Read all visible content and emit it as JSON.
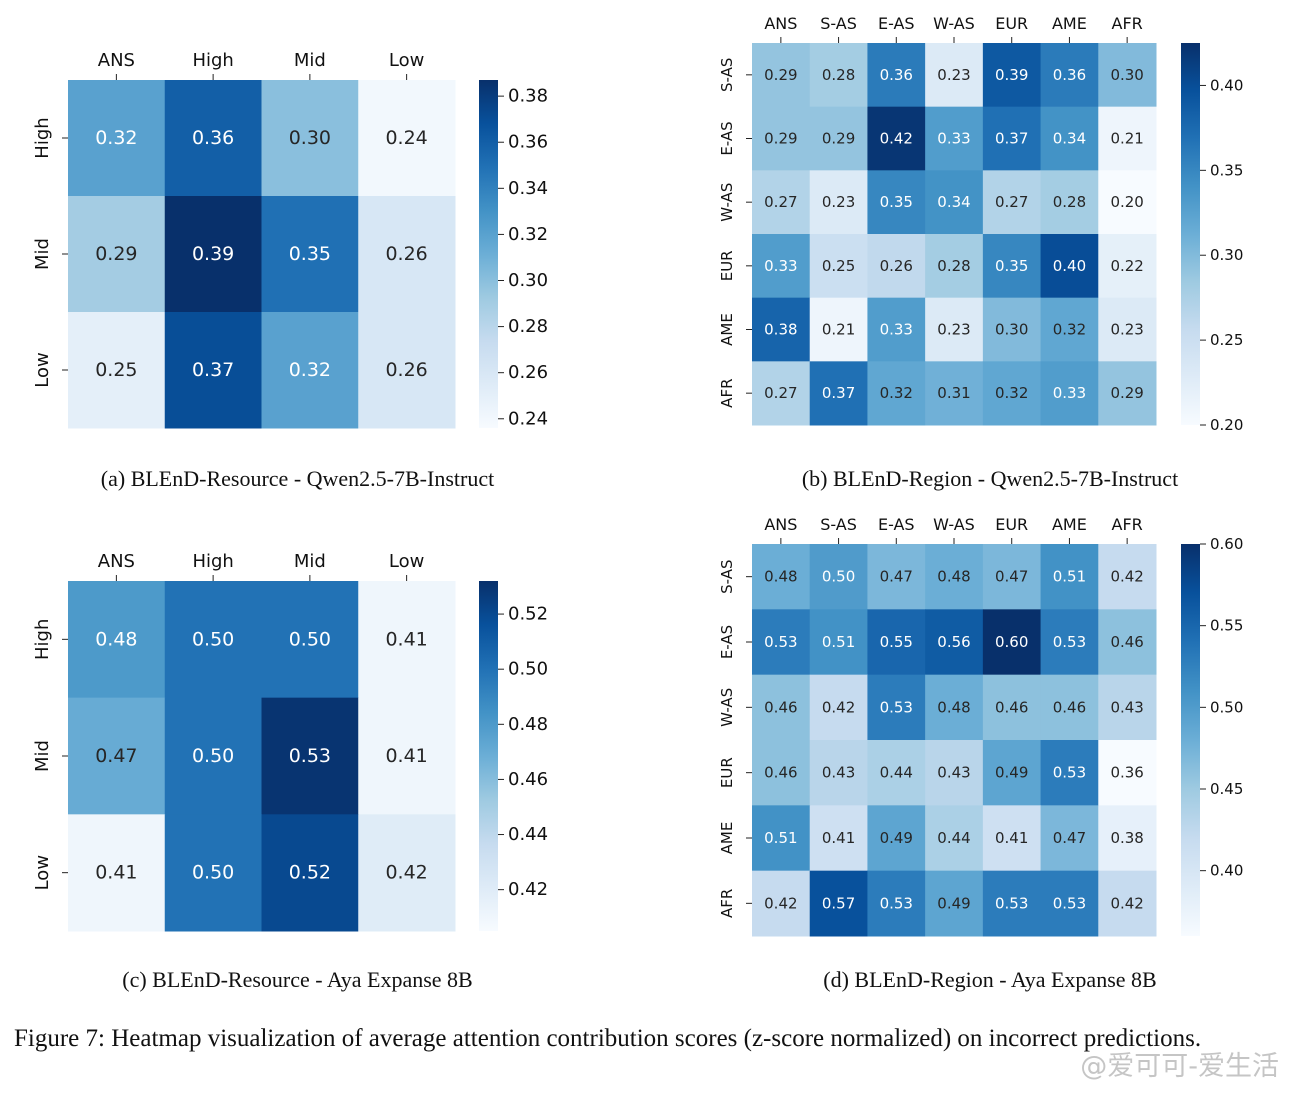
{
  "figure_caption": "Figure 7: Heatmap visualization of average attention contribution scores (z-score normalized) on incorrect predictions.",
  "watermark": "@爱可可-爱生活",
  "chart_data": [
    {
      "type": "heatmap",
      "panel": "a",
      "caption": "(a) BLEnD-Resource - Qwen2.5-7B-Instruct",
      "columns": [
        "ANS",
        "High",
        "Mid",
        "Low"
      ],
      "rows": [
        "High",
        "Mid",
        "Low"
      ],
      "values": [
        [
          0.32,
          0.36,
          0.3,
          0.24
        ],
        [
          0.29,
          0.39,
          0.35,
          0.26
        ],
        [
          0.25,
          0.37,
          0.32,
          0.26
        ]
      ],
      "colorbar_range": [
        0.236,
        0.387
      ],
      "colorbar_ticks": [
        0.24,
        0.26,
        0.28,
        0.3,
        0.32,
        0.34,
        0.36,
        0.38
      ],
      "colormap": "Blues"
    },
    {
      "type": "heatmap",
      "panel": "b",
      "caption": "(b) BLEnD-Region - Qwen2.5-7B-Instruct",
      "columns": [
        "ANS",
        "S-AS",
        "E-AS",
        "W-AS",
        "EUR",
        "AME",
        "AFR"
      ],
      "rows": [
        "S-AS",
        "E-AS",
        "W-AS",
        "EUR",
        "AME",
        "AFR"
      ],
      "values": [
        [
          0.29,
          0.28,
          0.36,
          0.23,
          0.39,
          0.36,
          0.3
        ],
        [
          0.29,
          0.29,
          0.42,
          0.33,
          0.37,
          0.34,
          0.21
        ],
        [
          0.27,
          0.23,
          0.35,
          0.34,
          0.27,
          0.28,
          0.2
        ],
        [
          0.33,
          0.25,
          0.26,
          0.28,
          0.35,
          0.4,
          0.22
        ],
        [
          0.38,
          0.21,
          0.33,
          0.23,
          0.3,
          0.32,
          0.23
        ],
        [
          0.27,
          0.37,
          0.32,
          0.31,
          0.32,
          0.33,
          0.29
        ]
      ],
      "colorbar_range": [
        0.2,
        0.425
      ],
      "colorbar_ticks": [
        0.2,
        0.25,
        0.3,
        0.35,
        0.4
      ],
      "colormap": "Blues"
    },
    {
      "type": "heatmap",
      "panel": "c",
      "caption": "(c) BLEnD-Resource - Aya Expanse 8B",
      "columns": [
        "ANS",
        "High",
        "Mid",
        "Low"
      ],
      "rows": [
        "High",
        "Mid",
        "Low"
      ],
      "values": [
        [
          0.48,
          0.5,
          0.5,
          0.41
        ],
        [
          0.47,
          0.5,
          0.53,
          0.41
        ],
        [
          0.41,
          0.5,
          0.52,
          0.42
        ]
      ],
      "colorbar_range": [
        0.405,
        0.532
      ],
      "colorbar_ticks": [
        0.42,
        0.44,
        0.46,
        0.48,
        0.5,
        0.52
      ],
      "colormap": "Blues"
    },
    {
      "type": "heatmap",
      "panel": "d",
      "caption": "(d) BLEnD-Region - Aya Expanse 8B",
      "columns": [
        "ANS",
        "S-AS",
        "E-AS",
        "W-AS",
        "EUR",
        "AME",
        "AFR"
      ],
      "rows": [
        "S-AS",
        "E-AS",
        "W-AS",
        "EUR",
        "AME",
        "AFR"
      ],
      "values": [
        [
          0.48,
          0.5,
          0.47,
          0.48,
          0.47,
          0.51,
          0.42
        ],
        [
          0.53,
          0.51,
          0.55,
          0.56,
          0.6,
          0.53,
          0.46
        ],
        [
          0.46,
          0.42,
          0.53,
          0.48,
          0.46,
          0.46,
          0.43
        ],
        [
          0.46,
          0.43,
          0.44,
          0.43,
          0.49,
          0.53,
          0.36
        ],
        [
          0.51,
          0.41,
          0.49,
          0.44,
          0.41,
          0.47,
          0.38
        ],
        [
          0.42,
          0.57,
          0.53,
          0.49,
          0.53,
          0.53,
          0.42
        ]
      ],
      "colorbar_range": [
        0.36,
        0.6
      ],
      "colorbar_ticks": [
        0.4,
        0.45,
        0.5,
        0.55,
        0.6
      ],
      "colormap": "Blues"
    }
  ]
}
